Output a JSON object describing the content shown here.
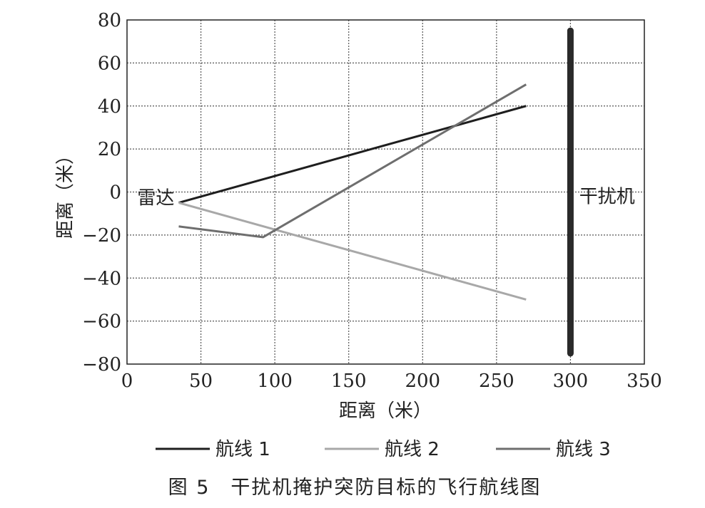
{
  "chart_data": {
    "type": "line",
    "xlabel": "距离（米）",
    "ylabel": "距离（米）",
    "xlim": [
      0,
      350
    ],
    "ylim": [
      -80,
      80
    ],
    "xticks": [
      0,
      50,
      100,
      150,
      200,
      250,
      300,
      350
    ],
    "yticks": [
      80,
      60,
      40,
      20,
      0,
      -20,
      -40,
      -60,
      -80
    ],
    "xtick_labels": [
      "0",
      "50",
      "100",
      "150",
      "200",
      "250",
      "300",
      "350"
    ],
    "ytick_labels": [
      "80",
      "60",
      "40",
      "20",
      "0",
      "−20",
      "−40",
      "−60",
      "−80"
    ],
    "grid": true,
    "legend_position": "bottom",
    "series": [
      {
        "name": "航线 1",
        "color": "#1e1e1e",
        "x": [
          35,
          270
        ],
        "y": [
          -5,
          40
        ]
      },
      {
        "name": "航线 2",
        "color": "#a8a8a8",
        "x": [
          35,
          270
        ],
        "y": [
          -5,
          -50
        ]
      },
      {
        "name": "航线 3",
        "color": "#6e6e6e",
        "x": [
          35,
          92,
          270
        ],
        "y": [
          -16,
          -21,
          50
        ]
      }
    ],
    "jammer": {
      "x": 300,
      "y": [
        -75,
        75
      ],
      "color": "#2a2a2a"
    },
    "annotations": [
      {
        "text": "雷达",
        "x": 34,
        "y": -3
      },
      {
        "text": "干扰机",
        "x": 304,
        "y": -2
      }
    ],
    "caption": "图 5　干扰机掩护突防目标的飞行航线图"
  }
}
